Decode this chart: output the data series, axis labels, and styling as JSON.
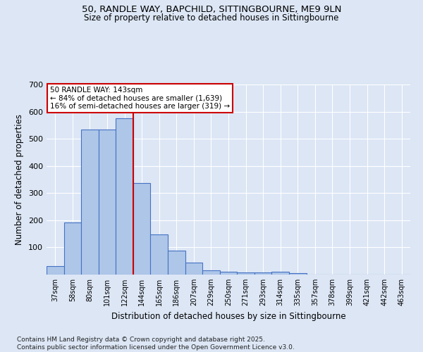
{
  "title_line1": "50, RANDLE WAY, BAPCHILD, SITTINGBOURNE, ME9 9LN",
  "title_line2": "Size of property relative to detached houses in Sittingbourne",
  "xlabel": "Distribution of detached houses by size in Sittingbourne",
  "ylabel": "Number of detached properties",
  "categories": [
    "37sqm",
    "58sqm",
    "80sqm",
    "101sqm",
    "122sqm",
    "144sqm",
    "165sqm",
    "186sqm",
    "207sqm",
    "229sqm",
    "250sqm",
    "271sqm",
    "293sqm",
    "314sqm",
    "335sqm",
    "357sqm",
    "378sqm",
    "399sqm",
    "421sqm",
    "442sqm",
    "463sqm"
  ],
  "values": [
    32,
    193,
    533,
    533,
    575,
    338,
    148,
    87,
    43,
    15,
    10,
    8,
    8,
    11,
    5,
    0,
    0,
    0,
    0,
    0,
    0
  ],
  "bar_color": "#aec6e8",
  "bar_edge_color": "#4472c4",
  "vline_color": "#cc0000",
  "annotation_box_text": "50 RANDLE WAY: 143sqm\n← 84% of detached houses are smaller (1,639)\n16% of semi-detached houses are larger (319) →",
  "annotation_box_color": "#cc0000",
  "fig_background_color": "#dce6f5",
  "ax_background_color": "#dce6f5",
  "grid_color": "#ffffff",
  "ylim": [
    0,
    700
  ],
  "yticks": [
    0,
    100,
    200,
    300,
    400,
    500,
    600,
    700
  ],
  "footer_line1": "Contains HM Land Registry data © Crown copyright and database right 2025.",
  "footer_line2": "Contains public sector information licensed under the Open Government Licence v3.0."
}
